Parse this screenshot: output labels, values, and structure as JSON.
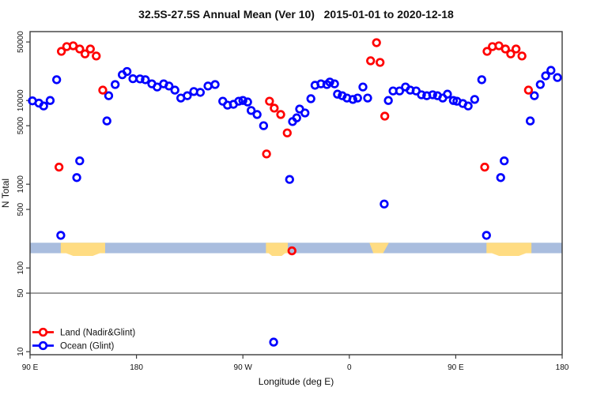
{
  "title": "32.5S-27.5S Annual Mean (Ver 10)   2015-01-01 to 2020-12-18",
  "legend": {
    "items": [
      {
        "id": "land",
        "label": "Land (Nadir&Glint)",
        "color": "#FF0000"
      },
      {
        "id": "ocean",
        "label": "Ocean (Glint)",
        "color": "#0000FF"
      }
    ]
  },
  "colors": {
    "land": "#FF0000",
    "ocean": "#0000FF",
    "band_blue": "#A9BDDE",
    "band_yellow": "#FFDC82",
    "reference_line": "#888888",
    "axis": "#3C3C3C",
    "text": "#111111"
  },
  "chart_data": {
    "type": "scatter",
    "title": "32.5S-27.5S Annual Mean (Ver 10)  2015-01-01 to 2020-12-18",
    "xlabel": "Longitude (deg E)",
    "ylabel": "N Total",
    "x_axis": {
      "tick_labels": [
        "90 E",
        "180",
        "90 W",
        "0",
        "90 E",
        "180"
      ],
      "tick_lons": [
        90,
        180,
        270,
        360,
        450,
        540
      ],
      "xlim_lon": [
        90,
        540
      ],
      "note": "longitude axis continues eastward and wraps: 90E..180..90W..0..90E..180"
    },
    "y_axis": {
      "scale": "log",
      "tick_labels": [
        "10",
        "50",
        "100",
        "500",
        "1000",
        "5000",
        "10000",
        "50000"
      ],
      "tick_values": [
        10,
        50,
        100,
        500,
        1000,
        5000,
        10000,
        50000
      ],
      "ylim": [
        9.2,
        66500
      ]
    },
    "grid": false,
    "legend_position": "bottom-left",
    "reference_line_n": 50,
    "band": {
      "n_range": [
        150,
        200
      ],
      "yellow_patches_lon": [
        {
          "from": 116,
          "to": 153.5,
          "style": "bump"
        },
        {
          "from": 289.5,
          "to": 308,
          "style": "bump"
        },
        {
          "from": 377,
          "to": 393.5,
          "style": "funnel"
        },
        {
          "from": 476,
          "to": 514,
          "style": "bump"
        }
      ]
    },
    "series": [
      {
        "name": "Land (Nadir&Glint)",
        "color": "#FF0000",
        "points": [
          [
            114.5,
            1600
          ],
          [
            116.5,
            38600
          ],
          [
            121,
            44000
          ],
          [
            126.5,
            45000
          ],
          [
            132,
            41200
          ],
          [
            136.5,
            36000
          ],
          [
            141,
            41200
          ],
          [
            146,
            34000
          ],
          [
            151.5,
            13300
          ],
          [
            290,
            2300
          ],
          [
            292.5,
            9800
          ],
          [
            296.5,
            8100
          ],
          [
            302,
            6800
          ],
          [
            307.5,
            4100
          ],
          [
            311.5,
            160
          ],
          [
            378,
            29800
          ],
          [
            383,
            49000
          ],
          [
            386,
            28500
          ],
          [
            390,
            6500
          ],
          [
            474.5,
            1600
          ],
          [
            476.5,
            38600
          ],
          [
            481,
            44000
          ],
          [
            486.5,
            45000
          ],
          [
            492,
            41200
          ],
          [
            496.5,
            36000
          ],
          [
            501,
            41200
          ],
          [
            506,
            34000
          ],
          [
            511.5,
            13300
          ]
        ]
      },
      {
        "name": "Ocean (Glint)",
        "color": "#0000FF",
        "points": [
          [
            92,
            9900
          ],
          [
            97.5,
            9300
          ],
          [
            101.5,
            8600
          ],
          [
            107,
            10000
          ],
          [
            112.5,
            17700
          ],
          [
            116,
            245
          ],
          [
            129.5,
            1200
          ],
          [
            132,
            1900
          ],
          [
            155,
            5700
          ],
          [
            156.5,
            11400
          ],
          [
            162,
            15500
          ],
          [
            168,
            20300
          ],
          [
            172,
            22200
          ],
          [
            177,
            18200
          ],
          [
            183,
            18100
          ],
          [
            187.5,
            17700
          ],
          [
            193,
            15800
          ],
          [
            197.5,
            14500
          ],
          [
            203,
            15800
          ],
          [
            207.5,
            14900
          ],
          [
            212.5,
            13300
          ],
          [
            217.5,
            10700
          ],
          [
            223,
            11400
          ],
          [
            228.5,
            12800
          ],
          [
            234,
            12500
          ],
          [
            240.5,
            14900
          ],
          [
            246.5,
            15500
          ],
          [
            253,
            9800
          ],
          [
            257,
            8800
          ],
          [
            262,
            9000
          ],
          [
            266.5,
            9800
          ],
          [
            270,
            10000
          ],
          [
            274,
            9600
          ],
          [
            277,
            7600
          ],
          [
            282,
            6800
          ],
          [
            287.5,
            5000
          ],
          [
            296,
            13
          ],
          [
            309.5,
            1140
          ],
          [
            312,
            5600
          ],
          [
            315.5,
            6200
          ],
          [
            318,
            7900
          ],
          [
            322.5,
            7100
          ],
          [
            327.5,
            10500
          ],
          [
            331,
            15200
          ],
          [
            336,
            15800
          ],
          [
            341,
            15500
          ],
          [
            343.5,
            16600
          ],
          [
            347.5,
            15800
          ],
          [
            350,
            11900
          ],
          [
            354,
            11400
          ],
          [
            358,
            10700
          ],
          [
            363,
            10300
          ],
          [
            367,
            10700
          ],
          [
            371.5,
            14500
          ],
          [
            375.5,
            10700
          ],
          [
            389.5,
            580
          ],
          [
            393,
            10000
          ],
          [
            397,
            13000
          ],
          [
            402.5,
            13000
          ],
          [
            407.5,
            14500
          ],
          [
            411.5,
            13300
          ],
          [
            416.5,
            13000
          ],
          [
            421,
            11700
          ],
          [
            425.5,
            11400
          ],
          [
            430.5,
            11700
          ],
          [
            434.5,
            11400
          ],
          [
            439,
            10700
          ],
          [
            443,
            11900
          ],
          [
            448,
            10000
          ],
          [
            451,
            9800
          ],
          [
            456,
            9200
          ],
          [
            460.5,
            8600
          ],
          [
            466,
            10300
          ],
          [
            472,
            17700
          ],
          [
            476,
            245
          ],
          [
            488,
            1200
          ],
          [
            491,
            1900
          ],
          [
            513,
            5700
          ],
          [
            516.5,
            11400
          ],
          [
            521.5,
            15500
          ],
          [
            526,
            19700
          ],
          [
            530.5,
            22900
          ],
          [
            536,
            18800
          ]
        ]
      }
    ]
  }
}
